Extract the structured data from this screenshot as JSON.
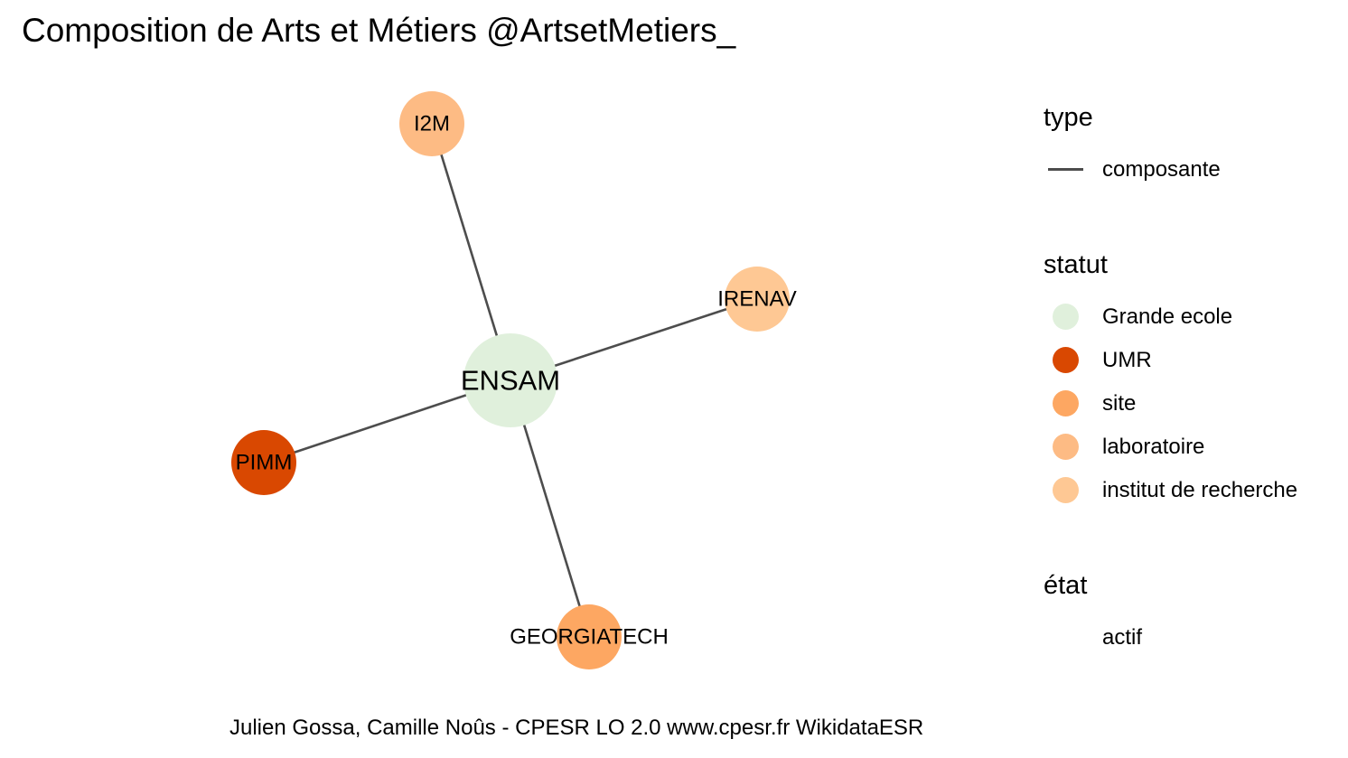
{
  "title": "Composition de Arts et Métiers @ArtsetMetiers_",
  "caption": "Julien Gossa, Camille Noûs - CPESR LO 2.0 www.cpesr.fr WikidataESR",
  "colors": {
    "edge": "#4d4d4d",
    "Grande ecole": "#e0f0dc",
    "UMR": "#d94801",
    "site": "#fda762",
    "laboratoire": "#fdbb84",
    "institut de recherche": "#fec894"
  },
  "graph": {
    "nodes": [
      {
        "id": "ENSAM",
        "label": "ENSAM",
        "statut": "Grande ecole"
      },
      {
        "id": "I2M",
        "label": "I2M",
        "statut": "laboratoire"
      },
      {
        "id": "IRENAV",
        "label": "IRENAV",
        "statut": "institut de recherche"
      },
      {
        "id": "PIMM",
        "label": "PIMM",
        "statut": "UMR"
      },
      {
        "id": "GEORGIATECH",
        "label": "GEORGIATECH",
        "statut": "site"
      }
    ],
    "edges": [
      {
        "from": "ENSAM",
        "to": "I2M",
        "type": "composante"
      },
      {
        "from": "ENSAM",
        "to": "IRENAV",
        "type": "composante"
      },
      {
        "from": "ENSAM",
        "to": "PIMM",
        "type": "composante"
      },
      {
        "from": "ENSAM",
        "to": "GEORGIATECH",
        "type": "composante"
      }
    ]
  },
  "legend": {
    "type": {
      "title": "type",
      "items": [
        "composante"
      ]
    },
    "statut": {
      "title": "statut",
      "items": [
        "Grande ecole",
        "UMR",
        "site",
        "laboratoire",
        "institut de recherche"
      ]
    },
    "etat": {
      "title": "état",
      "items": [
        "actif"
      ]
    }
  }
}
